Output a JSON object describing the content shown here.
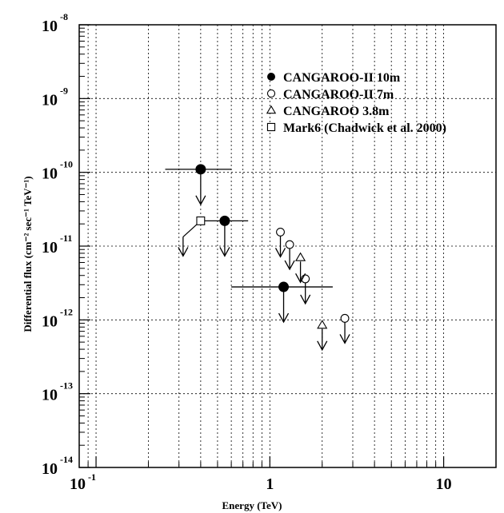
{
  "chart_data": {
    "type": "scatter",
    "title": "",
    "xlabel": "Energy (TeV)",
    "ylabel": "Differential flux (cm⁻² sec⁻¹ TeV⁻¹)",
    "x_scale": "log",
    "y_scale": "log",
    "xlim": [
      0.08,
      20
    ],
    "ylim": [
      1e-14,
      1e-08
    ],
    "grid": true,
    "x_ticks": [
      {
        "value": 0.1,
        "base": "10",
        "exp": "-1"
      },
      {
        "value": 1,
        "base": "1",
        "exp": ""
      },
      {
        "value": 10,
        "base": "10",
        "exp": ""
      }
    ],
    "y_ticks": [
      {
        "value": 1e-14,
        "base": "10",
        "exp": "-14"
      },
      {
        "value": 1e-13,
        "base": "10",
        "exp": "-13"
      },
      {
        "value": 1e-12,
        "base": "10",
        "exp": "-12"
      },
      {
        "value": 1e-11,
        "base": "10",
        "exp": "-11"
      },
      {
        "value": 1e-10,
        "base": "10",
        "exp": "-10"
      },
      {
        "value": 1e-09,
        "base": "10",
        "exp": "-9"
      },
      {
        "value": 1e-08,
        "base": "10",
        "exp": "-8"
      }
    ],
    "legend_position": "top-right",
    "series": [
      {
        "name": "CANGAROO-II 10m",
        "marker": "filled-circle",
        "points": [
          {
            "x": 0.4,
            "y": 1.1e-10,
            "xerr": [
              0.25,
              0.6
            ],
            "upper_limit": true
          },
          {
            "x": 0.55,
            "y": 2.2e-11,
            "xerr": [
              0.4,
              0.75
            ],
            "upper_limit": true
          },
          {
            "x": 1.2,
            "y": 2.8e-12,
            "xerr": [
              0.6,
              2.3
            ],
            "upper_limit": true
          }
        ]
      },
      {
        "name": "CANGAROO-II 7m",
        "marker": "open-circle",
        "points": [
          {
            "x": 1.15,
            "y": 1.55e-11,
            "upper_limit": true
          },
          {
            "x": 1.3,
            "y": 1.05e-11,
            "upper_limit": true
          },
          {
            "x": 1.6,
            "y": 3.6e-12,
            "upper_limit": true
          },
          {
            "x": 2.7,
            "y": 1.05e-12,
            "upper_limit": true
          }
        ]
      },
      {
        "name": "CANGAROO 3.8m",
        "marker": "open-triangle",
        "points": [
          {
            "x": 1.5,
            "y": 7e-12,
            "upper_limit": true
          },
          {
            "x": 2.0,
            "y": 8.5e-13,
            "upper_limit": true
          }
        ]
      },
      {
        "name": "Mark6 (Chadwick et al. 2000)",
        "marker": "open-square",
        "points": [
          {
            "x": 0.4,
            "y": 2.2e-11,
            "upper_limit": true
          }
        ]
      }
    ]
  }
}
